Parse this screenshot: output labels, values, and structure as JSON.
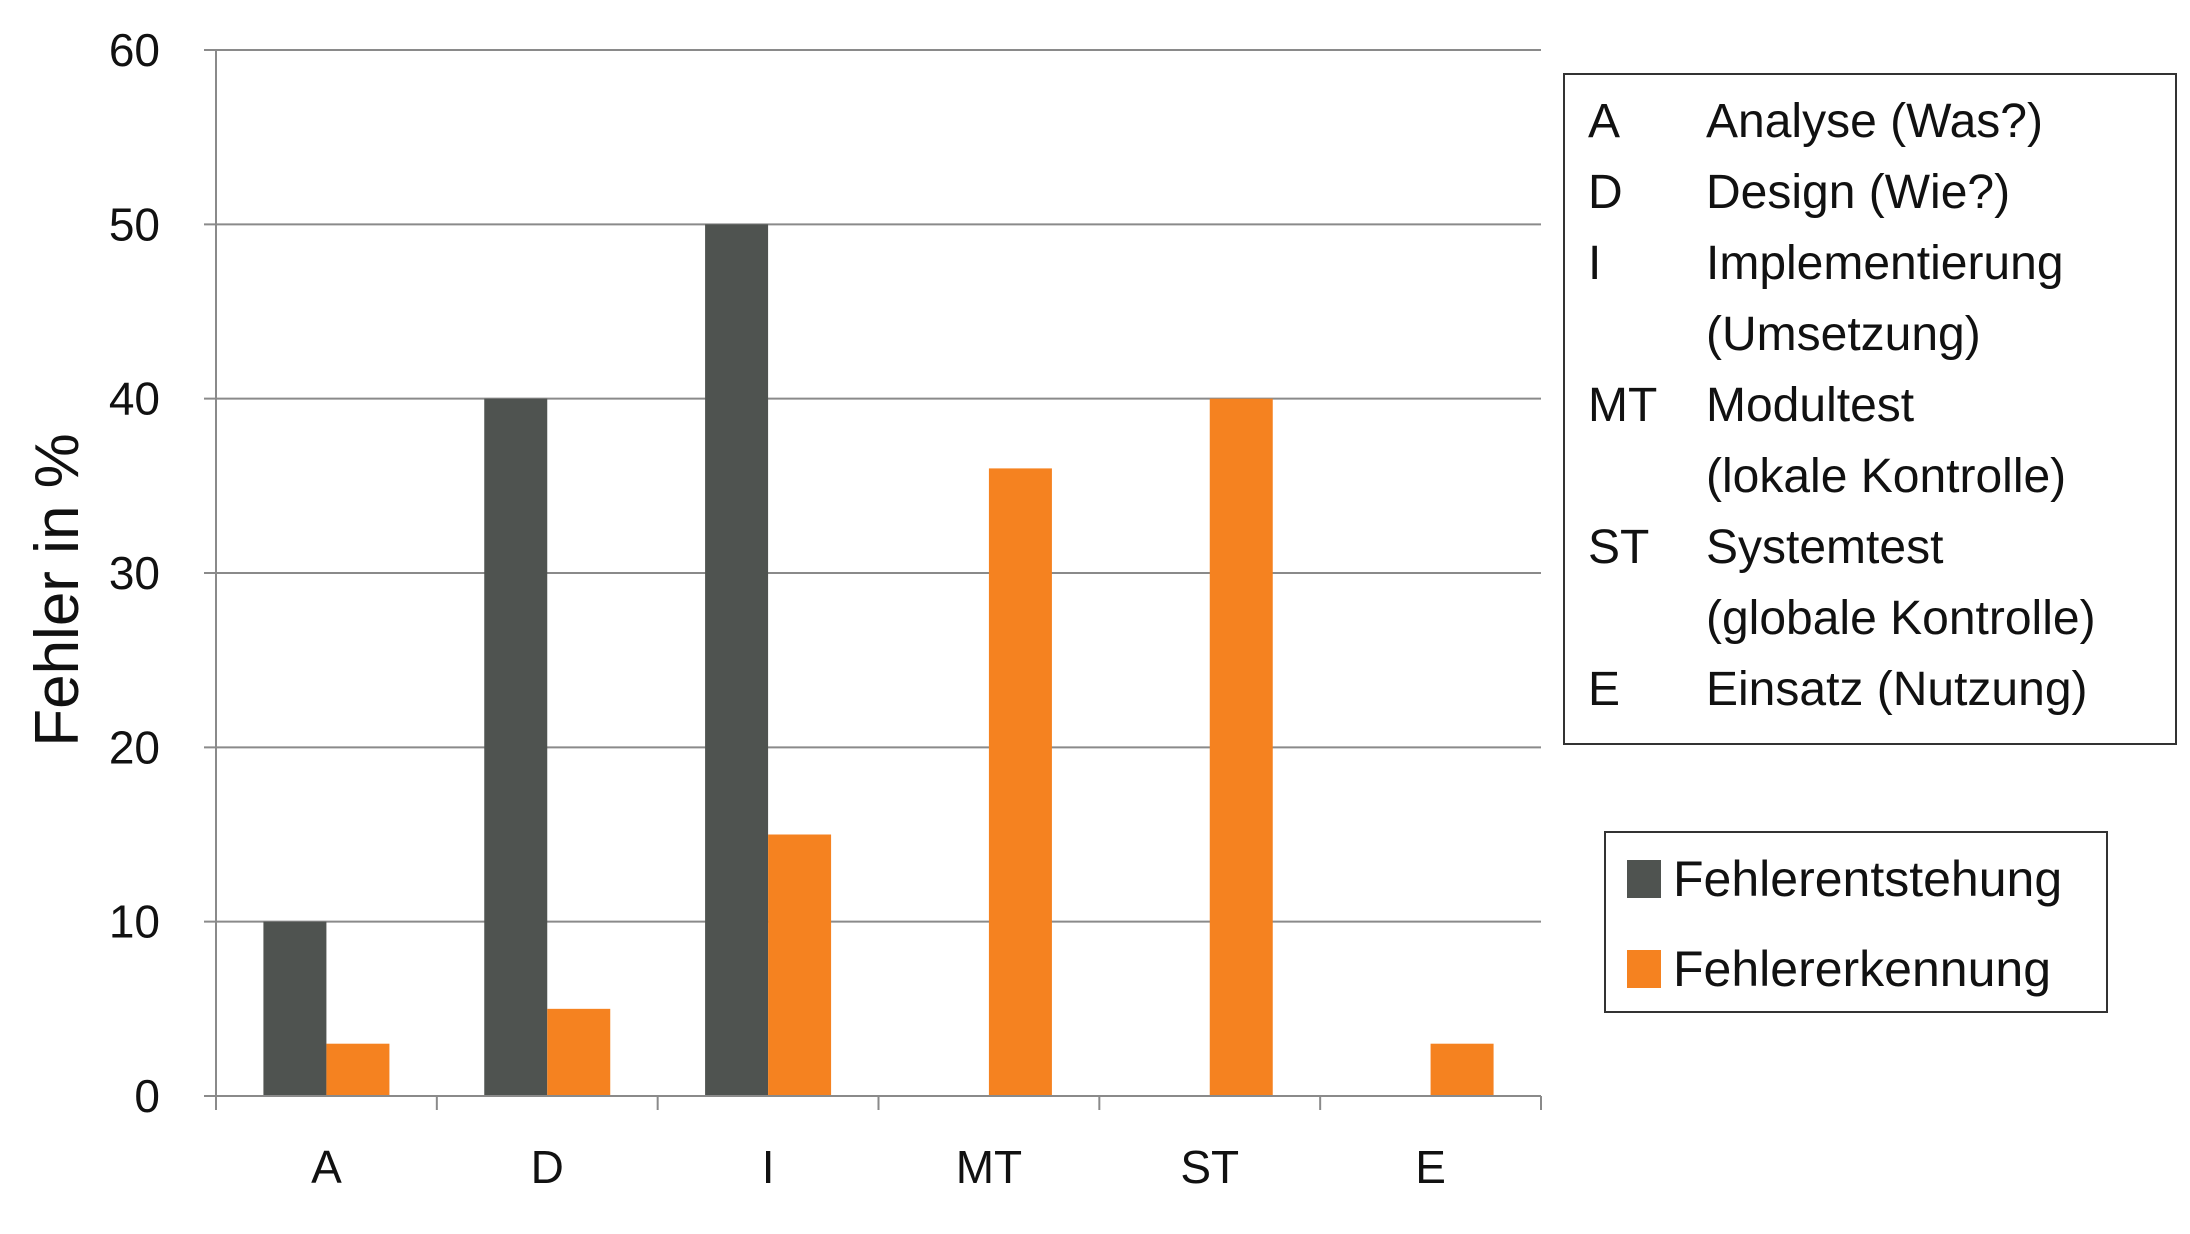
{
  "chart_data": {
    "type": "bar",
    "ylabel": "Fehler in %",
    "xlabel": "",
    "ylim": [
      0,
      60
    ],
    "yticks": [
      0,
      10,
      20,
      30,
      40,
      50,
      60
    ],
    "categories": [
      "A",
      "D",
      "I",
      "MT",
      "ST",
      "E"
    ],
    "grid": true,
    "series": [
      {
        "name": "Fehlerentstehung",
        "color": "#4f5350",
        "values": [
          10,
          40,
          50,
          0,
          0,
          0
        ]
      },
      {
        "name": "Fehlererkennung",
        "color": "#f58220",
        "values": [
          3,
          5,
          15,
          36,
          40,
          3
        ]
      }
    ],
    "key_legend": [
      {
        "abbr": "A",
        "lines": [
          "Analyse (Was?)"
        ]
      },
      {
        "abbr": "D",
        "lines": [
          "Design (Wie?)"
        ]
      },
      {
        "abbr": "I",
        "lines": [
          "Implementierung",
          "(Umsetzung)"
        ]
      },
      {
        "abbr": "MT",
        "lines": [
          "Modultest",
          "(lokale Kontrolle)"
        ]
      },
      {
        "abbr": "ST",
        "lines": [
          "Systemtest",
          "(globale Kontrolle)"
        ]
      },
      {
        "abbr": "E",
        "lines": [
          "Einsatz (Nutzung)"
        ]
      }
    ],
    "legend_position": "right"
  }
}
